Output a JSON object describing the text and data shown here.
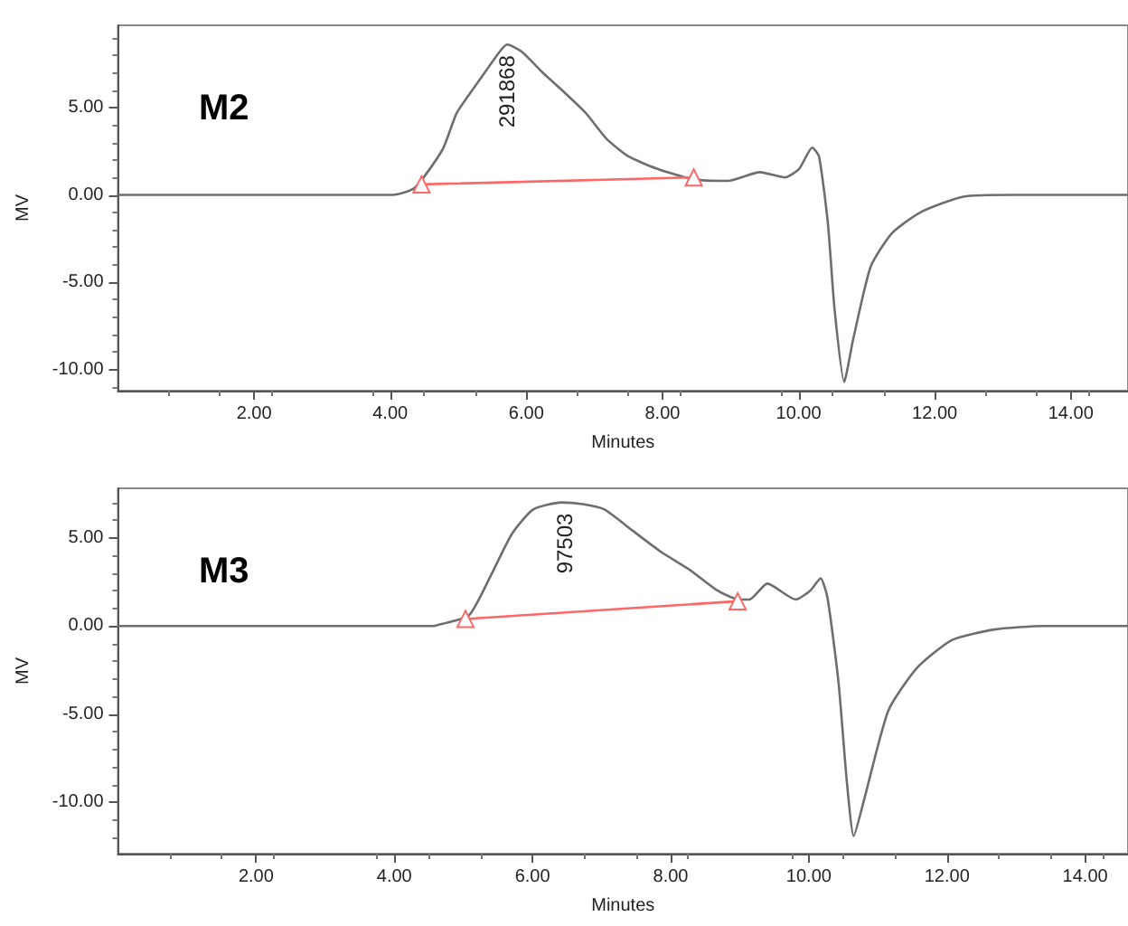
{
  "chart_data": [
    {
      "type": "line",
      "xlabel": "Minutes",
      "ylabel": "MV",
      "xlim": [
        0,
        14.84
      ],
      "ylim": [
        -11.2,
        9.7
      ],
      "xticks": [
        {
          "value": 2,
          "label": "2.00"
        },
        {
          "value": 4,
          "label": "4.00"
        },
        {
          "value": 6,
          "label": "6.00"
        },
        {
          "value": 8,
          "label": "8.00"
        },
        {
          "value": 10,
          "label": "10.00"
        },
        {
          "value": 12,
          "label": "12.00"
        },
        {
          "value": 14,
          "label": "14.00"
        }
      ],
      "yticks": [
        {
          "value": -10,
          "label": "-10.00"
        },
        {
          "value": -5,
          "label": "-5.00"
        },
        {
          "value": 0,
          "label": "0.00"
        },
        {
          "value": 5,
          "label": "5.00"
        }
      ],
      "grid": false,
      "series": [
        {
          "color": "#6e6e6e",
          "x": [
            0,
            4.04,
            4.36,
            4.77,
            4.98,
            5.3,
            5.61,
            5.72,
            5.93,
            6.24,
            6.55,
            6.87,
            7.18,
            7.5,
            7.92,
            8.44,
            8.96,
            9.43,
            9.8,
            10.01,
            10.2,
            10.3,
            10.43,
            10.53,
            10.67,
            10.8,
            11.06,
            11.37,
            11.79,
            12.42,
            13.15,
            14.84
          ],
          "values": [
            0,
            0,
            0.4,
            2.6,
            4.7,
            6.5,
            8.2,
            8.6,
            8.2,
            7.0,
            5.9,
            4.7,
            3.2,
            2.2,
            1.5,
            0.9,
            0.8,
            1.3,
            1.0,
            1.5,
            2.7,
            2.2,
            -1.6,
            -6.6,
            -10.7,
            -8.3,
            -4.1,
            -2.2,
            -1.0,
            -0.1,
            0,
            0
          ]
        },
        {
          "color": "#ff6666",
          "marker": "triangle",
          "x": [
            4.46,
            8.46
          ],
          "values": [
            0.6,
            1.0
          ]
        }
      ],
      "annotations": [
        "M2",
        {
          "text": "291868",
          "x": 5.72,
          "y": 8.6
        }
      ]
    },
    {
      "type": "line",
      "xlabel": "Minutes",
      "ylabel": "MV",
      "xlim": [
        0,
        14.62
      ],
      "ylim": [
        -12.9,
        7.8
      ],
      "xticks": [
        {
          "value": 2,
          "label": "2.00"
        },
        {
          "value": 4,
          "label": "4.00"
        },
        {
          "value": 6,
          "label": "6.00"
        },
        {
          "value": 8,
          "label": "8.00"
        },
        {
          "value": 10,
          "label": "10.00"
        },
        {
          "value": 12,
          "label": "12.00"
        },
        {
          "value": 14,
          "label": "14.00"
        }
      ],
      "yticks": [
        {
          "value": -10,
          "label": "-10.00"
        },
        {
          "value": -5,
          "label": "-5.00"
        },
        {
          "value": 0,
          "label": "0.00"
        },
        {
          "value": 5,
          "label": "5.00"
        }
      ],
      "grid": false,
      "series": [
        {
          "color": "#6e6e6e",
          "x": [
            0,
            4.57,
            4.67,
            5.08,
            5.39,
            5.7,
            6.01,
            6.42,
            6.73,
            7.04,
            7.45,
            7.86,
            8.27,
            8.68,
            8.99,
            9.14,
            9.4,
            9.81,
            10.02,
            10.17,
            10.27,
            10.43,
            10.55,
            10.65,
            10.79,
            11.15,
            11.56,
            12.07,
            12.69,
            13.41,
            14.62
          ],
          "values": [
            0,
            0,
            0.1,
            0.6,
            2.8,
            5.2,
            6.6,
            7.0,
            6.9,
            6.6,
            5.4,
            4.2,
            3.2,
            2.0,
            1.5,
            1.5,
            2.4,
            1.5,
            2.0,
            2.7,
            1.6,
            -3.2,
            -8.8,
            -11.9,
            -10.0,
            -4.8,
            -2.4,
            -0.8,
            -0.2,
            0,
            0
          ]
        },
        {
          "color": "#ff6666",
          "marker": "triangle",
          "x": [
            5.03,
            8.97
          ],
          "values": [
            0.4,
            1.4
          ]
        }
      ],
      "annotations": [
        "M3",
        {
          "text": "97503",
          "x": 6.47,
          "y": 7.0
        }
      ]
    }
  ]
}
